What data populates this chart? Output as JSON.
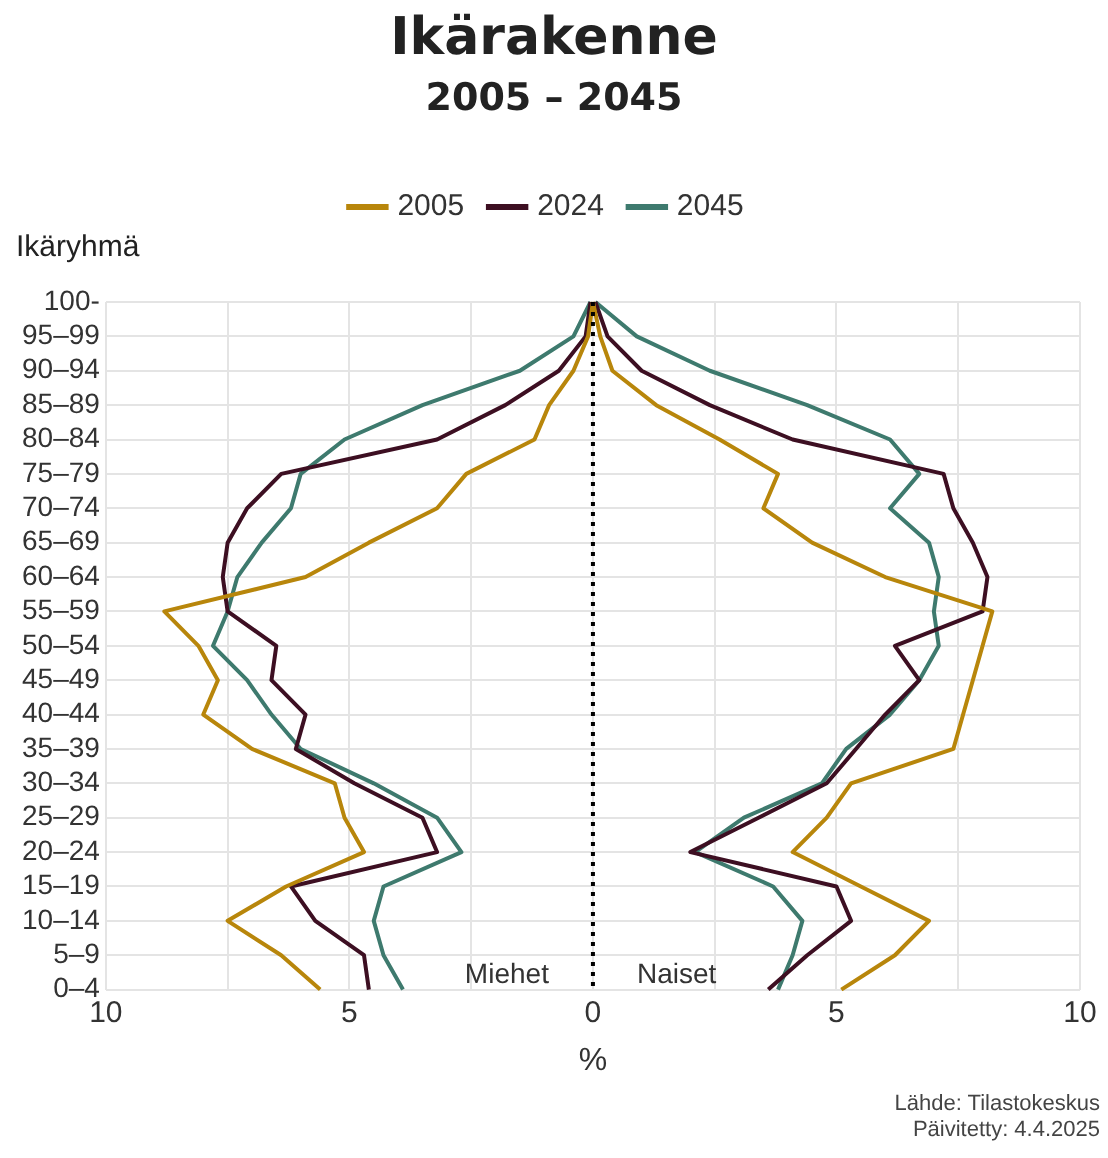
{
  "chart_data": {
    "type": "line",
    "orientation": "horizontal",
    "title": "Ikärakenne",
    "subtitle": "2005 – 2045",
    "xlabel": "%",
    "ylabel": "Ikäryhmä",
    "categories": [
      "100-",
      "95–99",
      "90–94",
      "85–89",
      "80–84",
      "75–79",
      "70–74",
      "65–69",
      "60–64",
      "55–59",
      "50–54",
      "45–49",
      "40–44",
      "35–39",
      "30–34",
      "25–29",
      "20–24",
      "15–19",
      "10–14",
      "5–9",
      "0–4"
    ],
    "series": [
      {
        "name": "2005",
        "color": "#b8860b",
        "values": [
          0.0,
          -0.1,
          -0.4,
          -0.9,
          -1.2,
          -2.6,
          -3.2,
          -4.6,
          -5.9,
          -8.8,
          -8.1,
          -7.7,
          -8.0,
          -7.0,
          -5.3,
          -5.1,
          -4.7,
          -6.3,
          -7.5,
          -6.4,
          -5.6
        ]
      },
      {
        "color": "#b8860b",
        "values": [
          0.0,
          0.15,
          0.4,
          1.3,
          2.6,
          3.8,
          3.5,
          4.5,
          6.0,
          8.2,
          8.0,
          7.8,
          7.6,
          7.4,
          5.3,
          4.8,
          4.1,
          5.5,
          6.9,
          6.2,
          5.1
        ]
      },
      {
        "name": "2024",
        "color": "#3d0f22",
        "values": [
          -0.05,
          -0.15,
          -0.7,
          -1.8,
          -3.2,
          -6.4,
          -7.1,
          -7.5,
          -7.6,
          -7.5,
          -6.5,
          -6.6,
          -5.9,
          -6.1,
          -4.9,
          -3.5,
          -3.2,
          -6.2,
          -5.7,
          -4.7,
          -4.6
        ]
      },
      {
        "color": "#3d0f22",
        "values": [
          0.05,
          0.3,
          1.0,
          2.4,
          4.1,
          7.2,
          7.4,
          7.8,
          8.1,
          8.0,
          6.2,
          6.7,
          6.0,
          5.4,
          4.8,
          3.4,
          2.0,
          5.0,
          5.3,
          4.4,
          3.6
        ]
      },
      {
        "name": "2045",
        "color": "#3e7a6e",
        "values": [
          -0.05,
          -0.4,
          -1.5,
          -3.5,
          -5.1,
          -6.0,
          -6.2,
          -6.8,
          -7.3,
          -7.5,
          -7.8,
          -7.1,
          -6.6,
          -6.0,
          -4.5,
          -3.2,
          -2.7,
          -4.3,
          -4.5,
          -4.3,
          -3.9
        ]
      },
      {
        "color": "#3e7a6e",
        "values": [
          0.05,
          0.9,
          2.4,
          4.4,
          6.1,
          6.7,
          6.1,
          6.9,
          7.1,
          7.0,
          7.1,
          6.7,
          6.1,
          5.2,
          4.7,
          3.1,
          2.1,
          3.7,
          4.3,
          4.1,
          3.8
        ]
      }
    ],
    "xlim": [
      -10,
      10
    ],
    "xticks": [
      {
        "value": -10,
        "label": "10"
      },
      {
        "value": -7.5,
        "label": null
      },
      {
        "value": -5,
        "label": "5"
      },
      {
        "value": -2.5,
        "label": null
      },
      0,
      {
        "value": 2.5,
        "label": null
      },
      5,
      {
        "value": 7.5,
        "label": null
      },
      10
    ],
    "ref_lines": [
      {
        "axis": "x",
        "value": 0,
        "color": "#000000",
        "line_style": "dotted"
      }
    ],
    "grid": true,
    "legend": "top",
    "marker": "none",
    "line_style": "solid",
    "annotations": [
      "Miehet",
      "Naiset",
      "Lähde: Tilastokeskus",
      "Päivitetty: 4.4.2025"
    ]
  }
}
